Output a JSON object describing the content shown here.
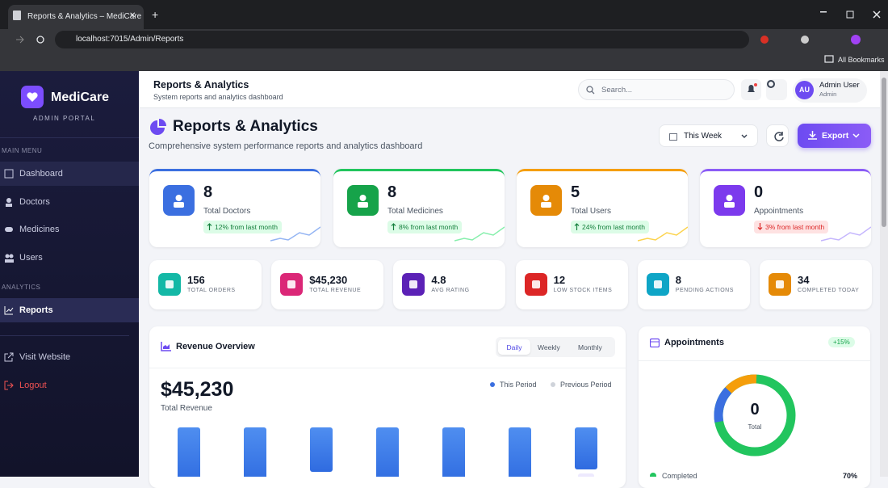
{
  "browser": {
    "tab_title": "Reports & Analytics – MediCare",
    "url": "localhost:7015/Admin/Reports",
    "bookmarks": "All Bookmarks"
  },
  "sidebar": {
    "brand": "MediCare",
    "subtitle": "ADMIN PORTAL",
    "sections": [
      {
        "label": "MAIN MENU",
        "items": [
          "Dashboard",
          "Doctors",
          "Medicines",
          "Users"
        ]
      },
      {
        "label": "ANALYTICS",
        "items": [
          "Reports"
        ]
      }
    ],
    "links": [
      "Visit Website",
      "Logout"
    ]
  },
  "header": {
    "title": "Reports & Analytics",
    "subtitle": "System reports and analytics dashboard",
    "search_placeholder": "Search...",
    "user_initials": "AU",
    "user_name": "Admin User",
    "user_role": "Admin"
  },
  "page": {
    "title": "Reports & Analytics",
    "subtitle": "Comprehensive system performance reports and analytics dashboard",
    "period": "This Week",
    "export": "Export"
  },
  "stats": [
    {
      "value": "8",
      "label": "Total Doctors",
      "change": "12% from last month"
    },
    {
      "value": "8",
      "label": "Total Medicines",
      "change": "8% from last month"
    },
    {
      "value": "5",
      "label": "Total Users",
      "change": "24% from last month"
    },
    {
      "value": "0",
      "label": "Appointments",
      "change": "3% from last month"
    }
  ],
  "metrics": [
    {
      "value": "156",
      "label": "TOTAL ORDERS"
    },
    {
      "value": "$45,230",
      "label": "TOTAL REVENUE"
    },
    {
      "value": "4.8",
      "label": "AVG RATING"
    },
    {
      "value": "12",
      "label": "LOW STOCK ITEMS"
    },
    {
      "value": "8",
      "label": "PENDING ACTIONS"
    },
    {
      "value": "34",
      "label": "COMPLETED TODAY"
    }
  ],
  "revenue": {
    "title": "Revenue Overview",
    "tabs": [
      "Daily",
      "Weekly",
      "Monthly"
    ],
    "total": "$45,230",
    "total_label": "Total Revenue",
    "legend": [
      "This Period",
      "Previous Period"
    ]
  },
  "appointments": {
    "title": "Appointments",
    "badge": "+15%",
    "center_value": "0",
    "center_label": "Total",
    "legend": [
      {
        "label": "Completed",
        "value": "70%"
      }
    ]
  }
}
